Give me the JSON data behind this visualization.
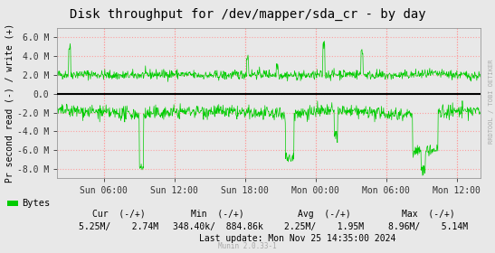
{
  "title": "Disk throughput for /dev/mapper/sda_cr - by day",
  "ylabel": "Pr second read (-) / write (+)",
  "background_color": "#e8e8e8",
  "plot_bg_color": "#e8e8e8",
  "grid_color": "#ff9999",
  "line_color": "#00cc00",
  "zero_line_color": "#000000",
  "ylim": [
    -9000000,
    7000000
  ],
  "yticks": [
    -8000000,
    -6000000,
    -4000000,
    -2000000,
    0,
    2000000,
    4000000,
    6000000
  ],
  "ytick_labels": [
    "-8.0 M",
    "-6.0 M",
    "-4.0 M",
    "-2.0 M",
    "0.0",
    "2.0 M",
    "4.0 M",
    "6.0 M"
  ],
  "xtick_labels": [
    "Sun 06:00",
    "Sun 12:00",
    "Sun 18:00",
    "Mon 00:00",
    "Mon 06:00",
    "Mon 12:00"
  ],
  "legend_label": "Bytes",
  "legend_color": "#00cc00",
  "footer_cur_label": "Cur  (-/+)",
  "footer_cur_val": "5.25M/    2.74M",
  "footer_min_label": "Min  (-/+)",
  "footer_min_val": "348.40k/  884.86k",
  "footer_avg_label": "Avg  (-/+)",
  "footer_avg_val": "2.25M/    1.95M",
  "footer_max_label": "Max  (-/+)",
  "footer_max_val": "8.96M/    5.14M",
  "footer_last": "Last update: Mon Nov 25 14:35:00 2024",
  "munin_version": "Munin 2.0.33-1",
  "right_label": "RRDTOOL / TOBI OETIKER",
  "title_fontsize": 10,
  "axis_fontsize": 7,
  "legend_fontsize": 7.5,
  "footer_fontsize": 7
}
